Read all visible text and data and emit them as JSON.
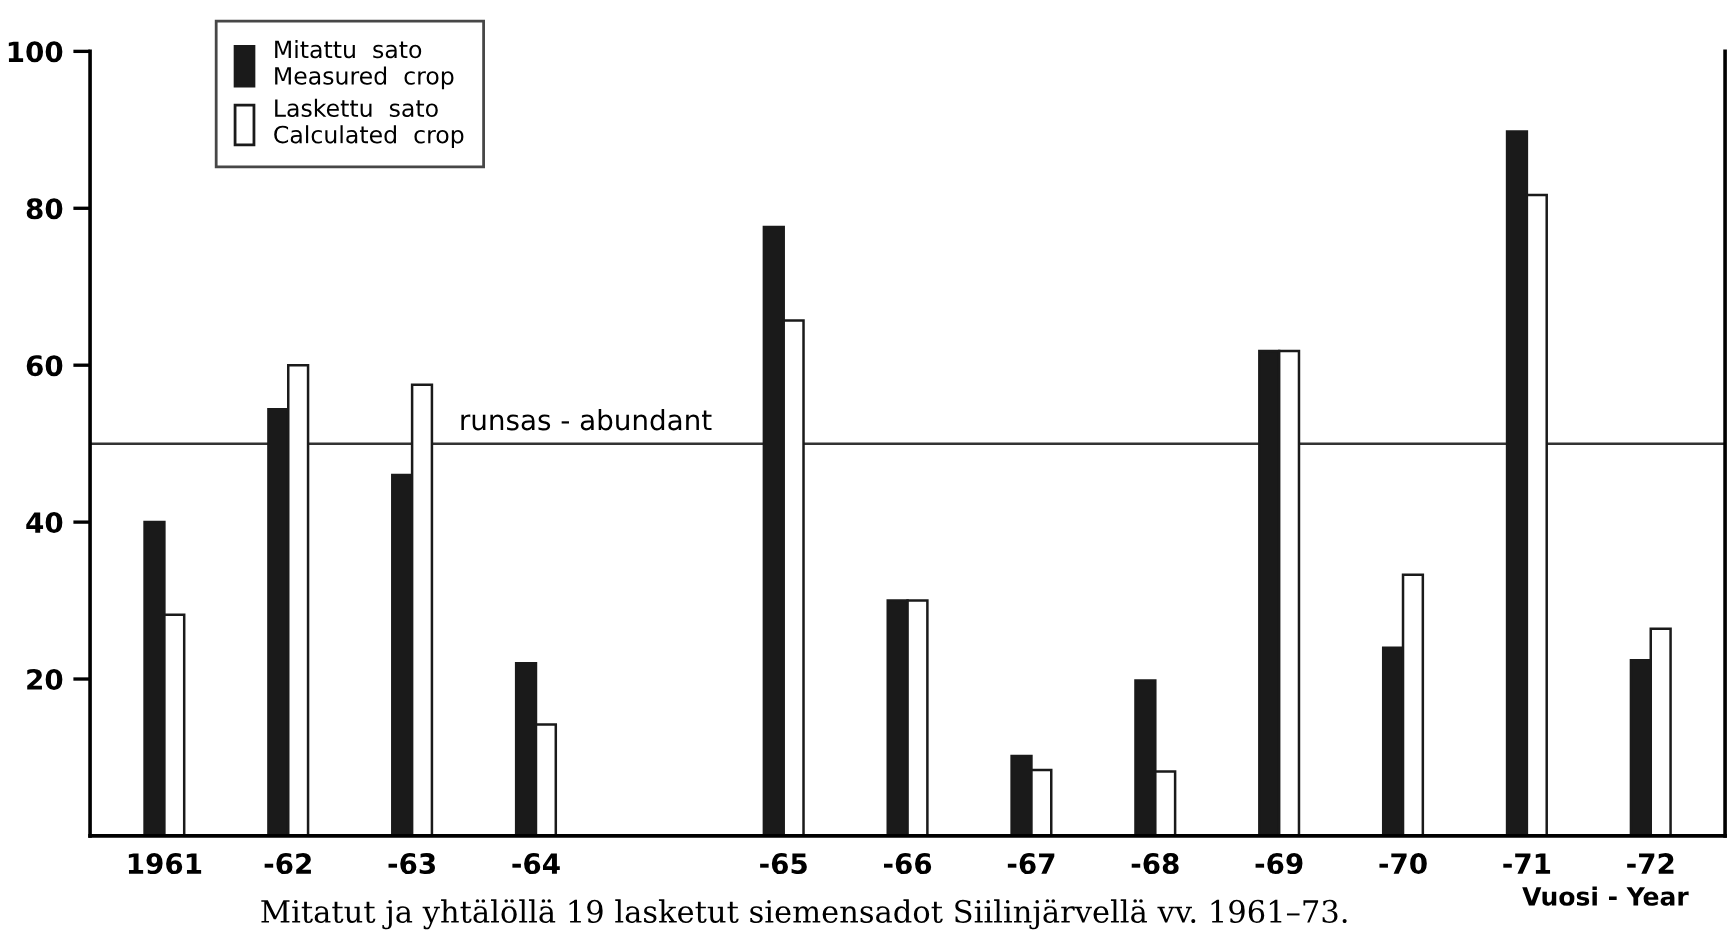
{
  "chart_data": {
    "type": "bar",
    "categories": [
      "1961",
      "-62",
      "-63",
      "-64",
      null,
      "-65",
      "-66",
      "-67",
      "-68",
      "-69",
      "-70",
      "-71",
      "-72"
    ],
    "series": [
      {
        "name": "Mitattu  sato\nMeasured  crop",
        "color": "#1a1a1a",
        "values": [
          40,
          54.4,
          46,
          22,
          null,
          77.6,
          30,
          10.2,
          19.8,
          61.8,
          24,
          89.8,
          22.4
        ]
      },
      {
        "name": "Laskettu  sato\nCalculated  crop",
        "color": "#ffffff",
        "values": [
          28.2,
          60,
          57.5,
          14.2,
          null,
          65.7,
          30,
          8.4,
          8.2,
          61.8,
          33.3,
          81.7,
          26.4
        ]
      }
    ],
    "ylim": [
      0,
      100
    ],
    "yticks": [
      20,
      40,
      60,
      80,
      100
    ],
    "xlabel": "Vuosi - Year",
    "ref_lines": [
      {
        "axis": "y",
        "value": 50,
        "label": "runsas - abundant",
        "color": "#333333"
      }
    ],
    "legend": "top left",
    "grid": false,
    "annotations": [
      "Mitatut ja yhtälöllä 19 lasketut siemensadot Siilinjärvellä vv. 1961–73."
    ]
  }
}
